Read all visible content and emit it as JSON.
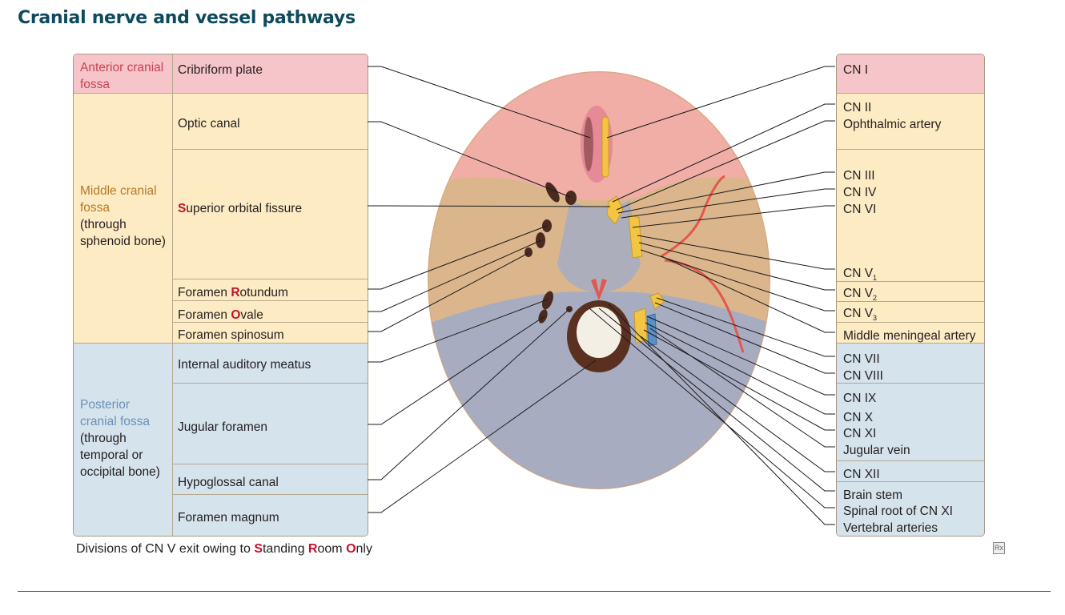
{
  "title": "Cranial nerve and vessel pathways",
  "fossae": {
    "anterior": {
      "label": "Anterior cranial fossa"
    },
    "middle": {
      "label": "Middle cranial fossa",
      "note": "(through sphenoid bone)"
    },
    "posterior": {
      "label": "Posterior cranial fossa",
      "note": "(through temporal or occipital bone)"
    }
  },
  "left_items": [
    {
      "text": "Cribriform plate"
    },
    {
      "text": "Optic canal"
    },
    {
      "initial": "S",
      "rest": "uperior orbital fissure"
    },
    {
      "prefix": "Foramen ",
      "initial": "R",
      "rest": "otundum"
    },
    {
      "prefix": "Foramen ",
      "initial": "O",
      "rest": "vale"
    },
    {
      "text": "Foramen spinosum"
    },
    {
      "text": "Internal auditory meatus"
    },
    {
      "text": "Jugular foramen"
    },
    {
      "text": "Hypoglossal canal"
    },
    {
      "text": "Foramen magnum"
    }
  ],
  "right_items": {
    "cn1": "CN I",
    "cn2": "CN II",
    "ophthalmic": "Ophthalmic artery",
    "cn3": "CN III",
    "cn4": "CN IV",
    "cn6": "CN VI",
    "cn5_1": {
      "base": "CN V",
      "sub": "1"
    },
    "cn5_2": {
      "base": "CN V",
      "sub": "2"
    },
    "cn5_3": {
      "base": "CN V",
      "sub": "3"
    },
    "mma": "Middle meningeal artery",
    "cn7": "CN VII",
    "cn8": "CN VIII",
    "cn9": "CN IX",
    "cn10": "CN X",
    "cn11": "CN XI",
    "jugular": "Jugular vein",
    "cn12": "CN XII",
    "brainstem": "Brain stem",
    "spinal11": "Spinal root of CN XI",
    "vertebral": "Vertebral arteries"
  },
  "mnemonic": {
    "prefix": "Divisions of CN V exit owing to ",
    "w1_initial": "S",
    "w1_rest": "tanding ",
    "w2_initial": "R",
    "w2_rest": "oom ",
    "w3_initial": "O",
    "w3_rest": "nly"
  },
  "rx_icon": "Rx",
  "colors": {
    "anterior": "#f5c5c9",
    "middle": "#fdebc4",
    "posterior": "#d5e3ec",
    "title": "#0d4a5e",
    "highlight": "#c8102e",
    "nerve": "#f4c542",
    "artery": "#e4574f"
  }
}
